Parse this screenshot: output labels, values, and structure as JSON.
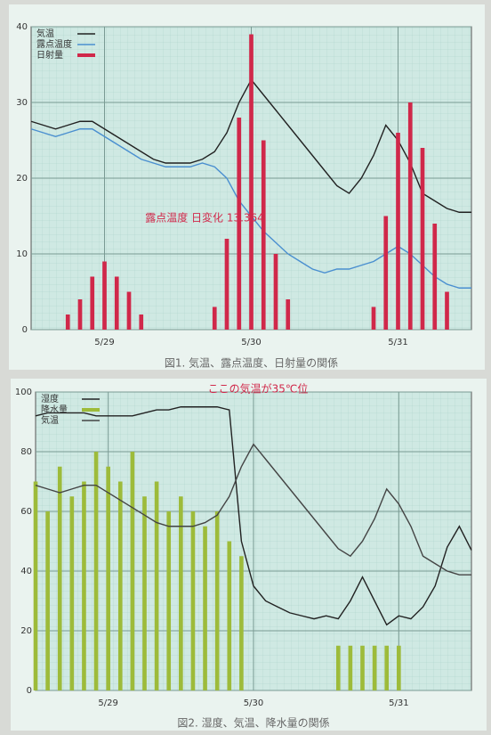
{
  "chart_data": [
    {
      "type": "combo",
      "caption": "図1. 気温、露点温度、日射量の関係",
      "annotation": "露点温度 日変化 13.364",
      "x": [
        0,
        2,
        4,
        6,
        8,
        10,
        12,
        14,
        16,
        18,
        20,
        22,
        24,
        26,
        28,
        30,
        32,
        34,
        36,
        38,
        40,
        42,
        44,
        46,
        48,
        50,
        52,
        54,
        56,
        58,
        60,
        62,
        64,
        66,
        68,
        70,
        72
      ],
      "xlim": [
        0,
        72
      ],
      "xticks": [
        {
          "value": 12,
          "label": "5/29"
        },
        {
          "value": 36,
          "label": "5/30"
        },
        {
          "value": 60,
          "label": "5/31"
        }
      ],
      "ylim": [
        0,
        40
      ],
      "yticks": [
        0,
        10,
        20,
        30,
        40
      ],
      "y2lim": [
        0,
        4
      ],
      "grid": true,
      "series": [
        {
          "name": "気温",
          "type": "line",
          "color": "#222222",
          "values": [
            27.5,
            27,
            26.5,
            27,
            27.5,
            27.5,
            26.5,
            25.5,
            24.5,
            23.5,
            22.5,
            22,
            22,
            22,
            22.5,
            23.5,
            26,
            30,
            33,
            31,
            29,
            27,
            25,
            23,
            21,
            19,
            18,
            20,
            23,
            27,
            25,
            22,
            18,
            17,
            16,
            15.5,
            15.5
          ]
        },
        {
          "name": "露点温度",
          "type": "line",
          "color": "#4a8fd0",
          "values": [
            26.5,
            26,
            25.5,
            26,
            26.5,
            26.5,
            25.5,
            24.5,
            23.5,
            22.5,
            22,
            21.5,
            21.5,
            21.5,
            22,
            21.5,
            20,
            17,
            15,
            13,
            11.5,
            10,
            9,
            8,
            7.5,
            8,
            8,
            8.5,
            9,
            10,
            11,
            10,
            8.5,
            7,
            6,
            5.5,
            5.5
          ]
        },
        {
          "name": "日射量",
          "type": "bar",
          "axis": "y2",
          "color": "#d0284a",
          "values": [
            0,
            0,
            0,
            0.2,
            0.4,
            0.7,
            0.9,
            0.7,
            0.5,
            0.2,
            0,
            0,
            0,
            0,
            0,
            0.3,
            1.2,
            2.8,
            3.9,
            2.5,
            1,
            0.4,
            0,
            0,
            0,
            0,
            0,
            0,
            0.3,
            1.5,
            2.6,
            3,
            2.4,
            1.4,
            0.5,
            0,
            0
          ]
        }
      ]
    },
    {
      "type": "combo",
      "caption": "図2. 湿度、気温、降水量の関係",
      "annotation": "ここの気温が35℃位",
      "x": [
        0,
        2,
        4,
        6,
        8,
        10,
        12,
        14,
        16,
        18,
        20,
        22,
        24,
        26,
        28,
        30,
        32,
        34,
        36,
        38,
        40,
        42,
        44,
        46,
        48,
        50,
        52,
        54,
        56,
        58,
        60,
        62,
        64,
        66,
        68,
        70,
        72
      ],
      "xlim": [
        0,
        72
      ],
      "xticks": [
        {
          "value": 12,
          "label": "5/29"
        },
        {
          "value": 36,
          "label": "5/30"
        },
        {
          "value": 60,
          "label": "5/31"
        }
      ],
      "ylim": [
        0,
        100
      ],
      "yticks": [
        0,
        20,
        40,
        60,
        80,
        100
      ],
      "y2lim": [
        0,
        40
      ],
      "grid": true,
      "series": [
        {
          "name": "湿度",
          "type": "line",
          "color": "#222222",
          "values": [
            92,
            93,
            93,
            93,
            93,
            92,
            92,
            92,
            92,
            93,
            94,
            94,
            95,
            95,
            95,
            95,
            94,
            50,
            35,
            30,
            28,
            26,
            25,
            24,
            25,
            24,
            30,
            38,
            30,
            22,
            25,
            24,
            28,
            35,
            48,
            55,
            47
          ]
        },
        {
          "name": "降水量",
          "type": "bar",
          "color": "#9dbb3a",
          "values": [
            70,
            60,
            75,
            65,
            70,
            80,
            75,
            70,
            80,
            65,
            70,
            60,
            65,
            60,
            55,
            60,
            50,
            45,
            0,
            0,
            0,
            0,
            0,
            0,
            0,
            15,
            15,
            15,
            15,
            15,
            15,
            0,
            0,
            0,
            0,
            0,
            0
          ]
        },
        {
          "name": "気温",
          "type": "line",
          "axis": "y2",
          "color": "#444444",
          "values": [
            27.5,
            27,
            26.5,
            27,
            27.5,
            27.5,
            26.5,
            25.5,
            24.5,
            23.5,
            22.5,
            22,
            22,
            22,
            22.5,
            23.5,
            26,
            30,
            33,
            31,
            29,
            27,
            25,
            23,
            21,
            19,
            18,
            20,
            23,
            27,
            25,
            22,
            18,
            17,
            16,
            15.5,
            15.5
          ]
        }
      ]
    }
  ]
}
